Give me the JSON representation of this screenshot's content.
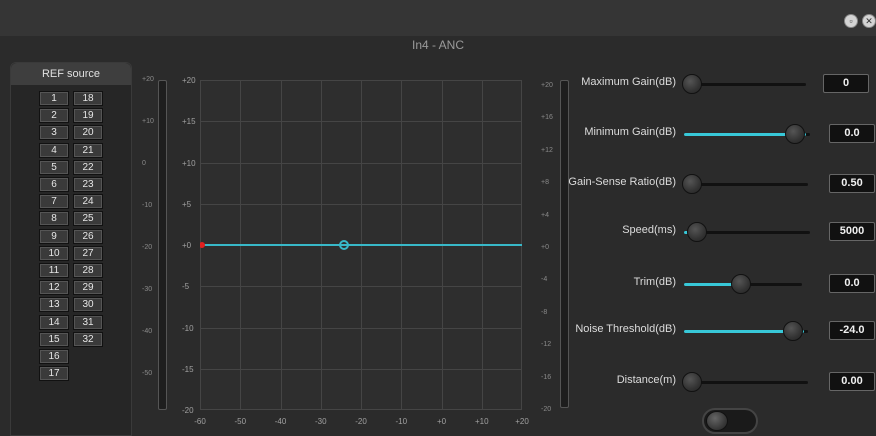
{
  "window": {
    "title": "In4 - ANC",
    "minimize_glyph": "▫",
    "close_glyph": "✕"
  },
  "ref_source": {
    "header": "REF source",
    "channels_col1": [
      "1",
      "2",
      "3",
      "4",
      "5",
      "6",
      "7",
      "8",
      "9",
      "10",
      "11",
      "12",
      "13",
      "14",
      "15",
      "16",
      "17"
    ],
    "channels_col2": [
      "18",
      "19",
      "20",
      "21",
      "22",
      "23",
      "24",
      "25",
      "26",
      "27",
      "28",
      "29",
      "30",
      "31",
      "32"
    ]
  },
  "graph": {
    "y_ticks": [
      "+20",
      "+15",
      "+10",
      "+5",
      "+0",
      "-5",
      "-10",
      "-15",
      "-20"
    ],
    "x_ticks": [
      "-60",
      "-50",
      "-40",
      "-30",
      "-20",
      "-10",
      "+0",
      "+10",
      "+20"
    ],
    "curve_color": "#38b8c8"
  },
  "left_meter_scale": [
    "+20",
    "+10",
    "0",
    "-10",
    "-20",
    "-30",
    "-40",
    "-50"
  ],
  "right_meter_scale": [
    "+20",
    "+16",
    "+12",
    "+8",
    "+4",
    "+0",
    "-4",
    "-8",
    "-12",
    "-16",
    "-20"
  ],
  "params": [
    {
      "label": "Maximum Gain(dB)",
      "value": "0",
      "fill": 0.0
    },
    {
      "label": "Minimum Gain(dB)",
      "value": "0.0",
      "fill": 0.97
    },
    {
      "label": "Gain-Sense Ratio(dB)",
      "value": "0.50",
      "fill": 0.0
    },
    {
      "label": "Speed(ms)",
      "value": "5000",
      "fill": 0.05
    },
    {
      "label": "Trim(dB)",
      "value": "0.0",
      "fill": 0.5
    },
    {
      "label": "Noise Threshold(dB)",
      "value": "-24.0",
      "fill": 0.97
    },
    {
      "label": "Distance(m)",
      "value": "0.00",
      "fill": 0.0
    }
  ],
  "colors": {
    "accent": "#38c8d8",
    "marker": "#e02020"
  }
}
